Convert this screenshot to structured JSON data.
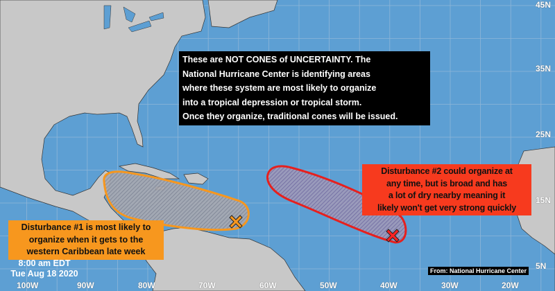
{
  "map": {
    "ocean_color": "#5d9fd3",
    "land_color": "#c8c8c8",
    "longitude_labels": [
      "100W",
      "90W",
      "80W",
      "70W",
      "60W",
      "50W",
      "40W",
      "30W",
      "20W"
    ],
    "latitude_labels": [
      "45N",
      "35N",
      "25N",
      "15N",
      "5N"
    ]
  },
  "note": {
    "lines": [
      "These are NOT CONES of UNCERTAINTY. The",
      "National Hurricane Center is identifying areas",
      "where these system are most likely to organize",
      " into a tropical depression or tropical storm.",
      "Once they organize, traditional cones will be issued."
    ]
  },
  "disturbance1": {
    "color": "#f7971e",
    "marker_icon": "x-marker-icon",
    "lines": [
      "Disturbance #1 is most likely to",
      "organize when it gets to the",
      "western Caribbean late week"
    ]
  },
  "disturbance2": {
    "color": "#f73a1e",
    "marker_icon": "x-marker-icon",
    "lines": [
      "Disturbance #2 could organize at",
      "any time, but is broad and has",
      "a lot of dry nearby meaning it",
      "likely won't get very strong quickly"
    ]
  },
  "timestamp": {
    "time": "8:00 am EDT",
    "date": "Tue Aug 18 2020"
  },
  "credit": "From: National Hurricane Center"
}
